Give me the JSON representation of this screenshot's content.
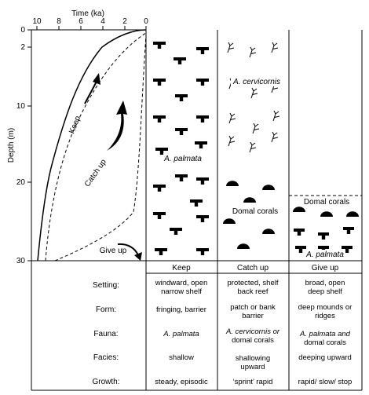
{
  "axes": {
    "x_title": "Time (ka)",
    "x_ticks": [
      "10",
      "8",
      "6",
      "4",
      "2",
      "0"
    ],
    "y_title": "Depth (m)",
    "y_ticks": [
      "0",
      "2",
      "10",
      "20",
      "30"
    ]
  },
  "curves": {
    "keep_label": "Keep",
    "catch_up_label": "Catch up",
    "give_up_label": "Give up"
  },
  "columns": {
    "keep": {
      "header": "Keep",
      "fauna_label": "A. palmata"
    },
    "catch_up": {
      "header": "Catch up",
      "upper_label": "A. cervicornis",
      "lower_label": "Domal corals"
    },
    "give_up": {
      "header": "Give up",
      "upper_label": "Domal corals",
      "lower_label": "A. palmata"
    }
  },
  "table": {
    "row_labels": [
      "Setting:",
      "Form:",
      "Fauna:",
      "Facies:",
      "Growth:"
    ],
    "keep": {
      "setting": [
        "windward, open",
        "narrow shelf"
      ],
      "form": [
        "fringing, barrier"
      ],
      "fauna": [
        "A. palmata"
      ],
      "facies": [
        "shallow"
      ],
      "growth": [
        "steady, episodic"
      ]
    },
    "catch_up": {
      "setting": [
        "protected, shelf",
        "back reef"
      ],
      "form": [
        "patch or bank",
        "barrier"
      ],
      "fauna": [
        "A. cervicornis or",
        "domal corals"
      ],
      "facies": [
        "shallowing",
        "upward"
      ],
      "growth": [
        "‘sprint’ rapid"
      ]
    },
    "give_up": {
      "setting": [
        "broad, open",
        "deep shelf"
      ],
      "form": [
        "deep mounds or",
        "ridges"
      ],
      "fauna": [
        "A. palmata and",
        "domal corals"
      ],
      "facies": [
        "deeping upward"
      ],
      "growth": [
        "rapid/ slow/ stop"
      ]
    }
  }
}
